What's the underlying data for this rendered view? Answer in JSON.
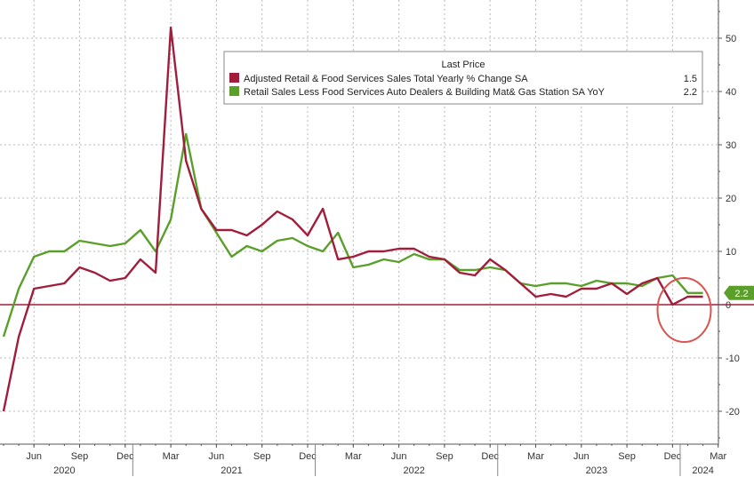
{
  "chart_data": {
    "type": "line",
    "legend": {
      "title": "Last Price",
      "placement": "top-right",
      "entries": [
        {
          "series": 0,
          "label": "Adjusted Retail & Food Services Sales Total Yearly % Change SA",
          "value": "1.5"
        },
        {
          "series": 1,
          "label": "Retail Sales Less Food Services Auto Dealers & Building Mat& Gas Station SA YoY",
          "value": "2.2"
        }
      ]
    },
    "x": [
      "2020-04",
      "2020-05",
      "2020-06",
      "2020-07",
      "2020-08",
      "2020-09",
      "2020-10",
      "2020-11",
      "2020-12",
      "2021-01",
      "2021-02",
      "2021-03",
      "2021-04",
      "2021-05",
      "2021-06",
      "2021-07",
      "2021-08",
      "2021-09",
      "2021-10",
      "2021-11",
      "2021-12",
      "2022-01",
      "2022-02",
      "2022-03",
      "2022-04",
      "2022-05",
      "2022-06",
      "2022-07",
      "2022-08",
      "2022-09",
      "2022-10",
      "2022-11",
      "2022-12",
      "2023-01",
      "2023-02",
      "2023-03",
      "2023-04",
      "2023-05",
      "2023-06",
      "2023-07",
      "2023-08",
      "2023-09",
      "2023-10",
      "2023-11",
      "2023-12",
      "2024-01",
      "2024-02"
    ],
    "series": [
      {
        "color": "#a01e3c",
        "values": [
          -20,
          -6,
          3,
          3.5,
          4,
          7,
          6,
          4.5,
          5,
          8.5,
          6,
          52,
          27,
          18,
          14,
          14,
          13,
          15,
          17.5,
          16,
          13,
          18,
          8.5,
          9,
          10,
          10,
          10.5,
          10.5,
          9,
          8.5,
          6,
          5.5,
          8.5,
          6.5,
          4,
          1.5,
          2,
          1.5,
          3,
          3,
          4,
          2,
          4,
          5,
          0,
          1.5,
          1.5
        ]
      },
      {
        "color": "#5b9f2b",
        "values": [
          -6,
          3,
          9,
          10,
          10,
          12,
          11.5,
          11,
          11.5,
          14,
          10,
          16,
          32,
          18,
          13.5,
          9,
          11,
          10,
          12,
          12.5,
          11,
          10,
          13.5,
          7,
          7.5,
          8.5,
          8,
          9.5,
          8.5,
          8.5,
          6.5,
          6.5,
          7,
          6.5,
          4,
          3.5,
          4,
          4,
          3.5,
          4.5,
          4,
          4,
          3.5,
          5,
          5.5,
          2.2,
          2.2
        ]
      }
    ],
    "ylim": [
      -27,
      57
    ],
    "y_ticks": [
      -20,
      -10,
      0,
      10,
      20,
      30,
      40,
      50
    ],
    "y_tick_labels": [
      "-20",
      "-10",
      "0",
      "10",
      "20",
      "30",
      "40",
      "50"
    ],
    "x_ticks": [
      {
        "date": "2020-06",
        "label": "Jun"
      },
      {
        "date": "2020-09",
        "label": "Sep"
      },
      {
        "date": "2020-12",
        "label": "Dec"
      },
      {
        "date": "2021-03",
        "label": "Mar"
      },
      {
        "date": "2021-06",
        "label": "Jun"
      },
      {
        "date": "2021-09",
        "label": "Sep"
      },
      {
        "date": "2021-12",
        "label": "Dec"
      },
      {
        "date": "2022-03",
        "label": "Mar"
      },
      {
        "date": "2022-06",
        "label": "Jun"
      },
      {
        "date": "2022-09",
        "label": "Sep"
      },
      {
        "date": "2022-12",
        "label": "Dec"
      },
      {
        "date": "2023-03",
        "label": "Mar"
      },
      {
        "date": "2023-06",
        "label": "Jun"
      },
      {
        "date": "2023-09",
        "label": "Sep"
      },
      {
        "date": "2023-12",
        "label": "Dec"
      },
      {
        "date": "2024-03",
        "label": "Mar"
      }
    ],
    "x_years": [
      {
        "label": "2020",
        "date": "2020-08"
      },
      {
        "label": "2021",
        "date": "2021-07"
      },
      {
        "label": "2022",
        "date": "2022-07"
      },
      {
        "label": "2023",
        "date": "2023-07"
      },
      {
        "label": "2024",
        "date": "2024-02"
      }
    ],
    "last_value_badge": {
      "series": 1,
      "label": "2.2"
    },
    "grid": true,
    "annotation": {
      "shape": "circle",
      "color": "#d9534f",
      "around": "last three months"
    }
  }
}
